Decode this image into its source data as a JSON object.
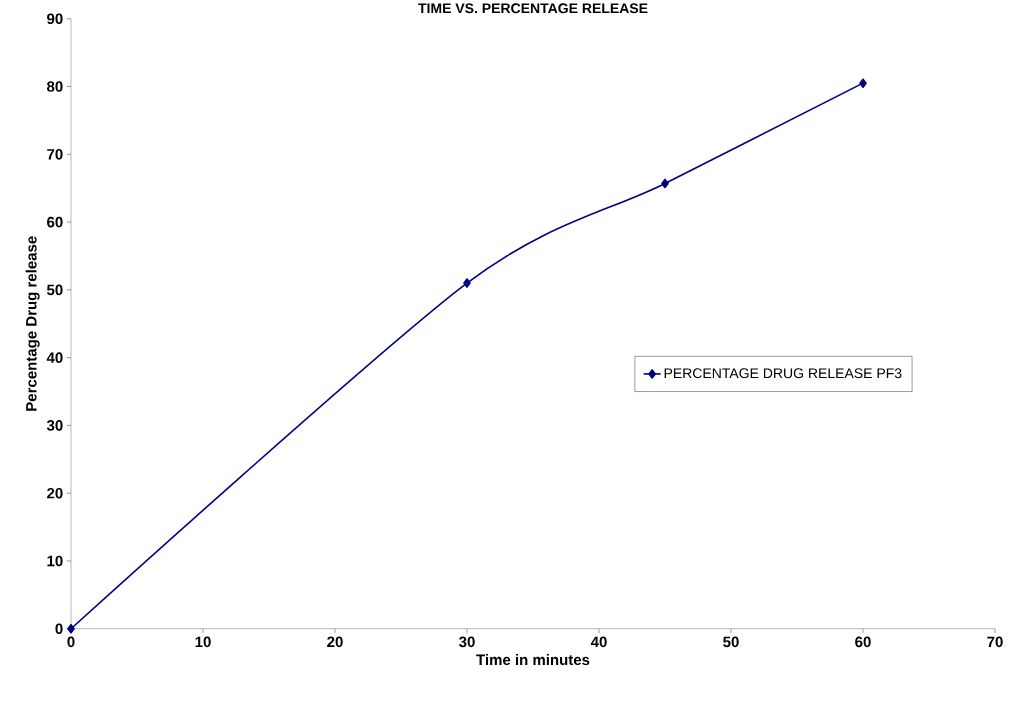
{
  "chart_data": {
    "type": "line",
    "title": "TIME VS. PERCENTAGE RELEASE",
    "xlabel": "Time in minutes",
    "ylabel": "Percentage Drug release",
    "x": [
      0,
      30,
      45,
      60
    ],
    "series": [
      {
        "name": "PERCENTAGE DRUG RELEASE PF3",
        "color": "#000080",
        "values": [
          0,
          51,
          65.7,
          80.5
        ]
      }
    ],
    "xlim": [
      0,
      70
    ],
    "xticks": [
      0,
      10,
      20,
      30,
      40,
      50,
      60,
      70
    ],
    "ylim": [
      0,
      90
    ],
    "yticks": [
      0,
      10,
      20,
      30,
      40,
      50,
      60,
      70,
      80,
      90
    ],
    "grid": false,
    "legend": "right",
    "marker": "diamond",
    "line_style": "solid"
  }
}
